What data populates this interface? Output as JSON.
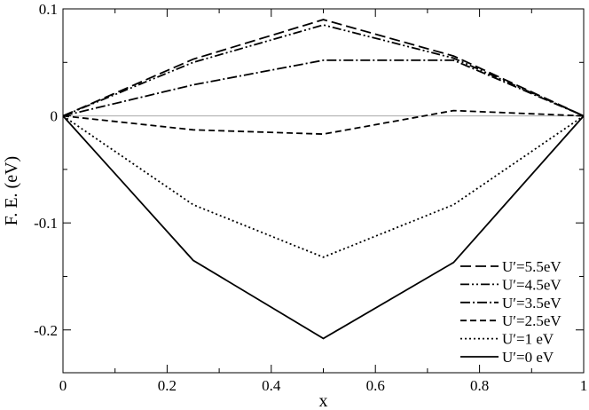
{
  "chart_data": {
    "type": "line",
    "title": "",
    "xlabel": "x",
    "ylabel": "F. E. (eV)",
    "xlim": [
      0,
      1
    ],
    "ylim": [
      -0.24,
      0.1
    ],
    "x_ticks": [
      0,
      0.2,
      0.4,
      0.6,
      0.8,
      1
    ],
    "x_tick_labels": [
      "0",
      "0.2",
      "0.4",
      "0.6",
      "0.8",
      "1"
    ],
    "y_ticks": [
      -0.2,
      -0.1,
      0,
      0.1
    ],
    "y_tick_labels": [
      "-0.2",
      "-0.1",
      "0",
      "0.1"
    ],
    "zero_line": true,
    "grid": false,
    "legend_position": "bottom-right",
    "series": [
      {
        "name": "U′=5.5eV",
        "dash": "long-dash",
        "color": "#000000",
        "x": [
          0,
          0.25,
          0.5,
          0.75,
          1
        ],
        "y": [
          0,
          0.053,
          0.09,
          0.056,
          0
        ]
      },
      {
        "name": "U′=4.5eV",
        "dash": "dash-dot-dot",
        "color": "#000000",
        "x": [
          0,
          0.25,
          0.5,
          0.75,
          1
        ],
        "y": [
          0,
          0.05,
          0.085,
          0.054,
          0
        ]
      },
      {
        "name": "U′=3.5eV",
        "dash": "dash-dot",
        "color": "#000000",
        "x": [
          0,
          0.25,
          0.5,
          0.75,
          1
        ],
        "y": [
          0,
          0.029,
          0.052,
          0.052,
          0
        ]
      },
      {
        "name": "U′=2.5eV",
        "dash": "dash",
        "color": "#000000",
        "x": [
          0,
          0.25,
          0.5,
          0.75,
          1
        ],
        "y": [
          0,
          -0.013,
          -0.017,
          0.005,
          0
        ]
      },
      {
        "name": "U′=1 eV",
        "dash": "dot",
        "color": "#000000",
        "x": [
          0,
          0.25,
          0.5,
          0.75,
          1
        ],
        "y": [
          0,
          -0.083,
          -0.132,
          -0.083,
          0
        ]
      },
      {
        "name": "U′=0 eV",
        "dash": "solid",
        "color": "#000000",
        "x": [
          0,
          0.25,
          0.5,
          0.75,
          1
        ],
        "y": [
          0,
          -0.135,
          -0.208,
          -0.137,
          0
        ]
      }
    ]
  }
}
